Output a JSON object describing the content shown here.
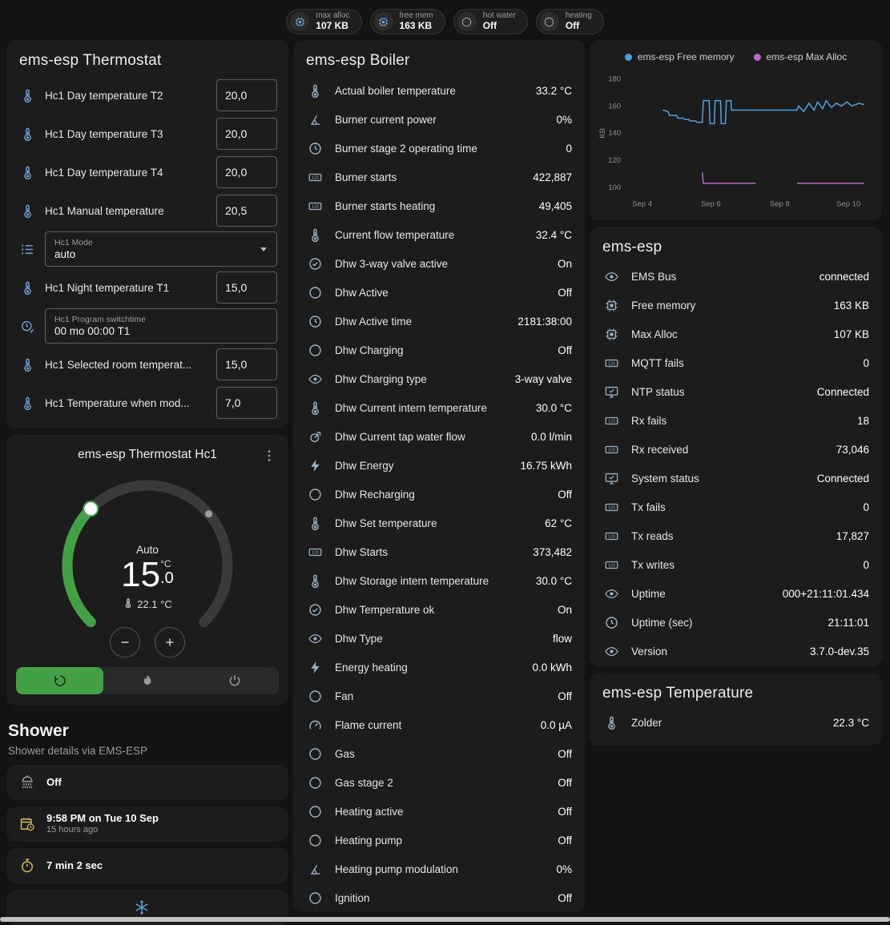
{
  "badges": [
    {
      "icon": "chip",
      "icon_color": "#6fa1d6",
      "label": "max alloc",
      "value": "107 KB"
    },
    {
      "icon": "chip",
      "icon_color": "#6fa1d6",
      "label": "free mem",
      "value": "163 KB"
    },
    {
      "icon": "circle",
      "icon_color": "#9b9b9b",
      "label": "hot water",
      "value": "Off"
    },
    {
      "icon": "circle",
      "icon_color": "#9b9b9b",
      "label": "heating",
      "value": "Off"
    }
  ],
  "thermostat_card": {
    "title": "ems-esp Thermostat",
    "rows": [
      {
        "icon": "thermometer",
        "label": "Hc1 Day temperature T2",
        "value": "20,0",
        "type": "number"
      },
      {
        "icon": "thermometer",
        "label": "Hc1 Day temperature T3",
        "value": "20,0",
        "type": "number"
      },
      {
        "icon": "thermometer",
        "label": "Hc1 Day temperature T4",
        "value": "20,0",
        "type": "number"
      },
      {
        "icon": "thermometer",
        "label": "Hc1 Manual temperature",
        "value": "20,5",
        "type": "number"
      },
      {
        "icon": "list",
        "label": "Hc1 Mode",
        "value": "auto",
        "type": "select"
      },
      {
        "icon": "thermometer",
        "label": "Hc1 Night temperature T1",
        "value": "15,0",
        "type": "number"
      },
      {
        "icon": "clock-edit",
        "label": "Hc1 Program switchtime",
        "value": "00 mo 00:00 T1",
        "type": "text"
      },
      {
        "icon": "thermometer",
        "label": "Hc1 Selected room temperat...",
        "value": "15,0",
        "type": "number"
      },
      {
        "icon": "thermometer",
        "label": "Hc1 Temperature when mod...",
        "value": "7,0",
        "type": "number"
      }
    ]
  },
  "dial_card": {
    "title": "ems-esp Thermostat Hc1",
    "mode": "Auto",
    "temp_int": "15",
    "temp_dec": ".0",
    "temp_unit": "°C",
    "current": "22.1 °C"
  },
  "shower": {
    "title": "Shower",
    "subtitle": "Shower details via EMS-ESP",
    "cards": [
      {
        "icon": "shower-head",
        "color": "#9da0a2",
        "title": "Off"
      },
      {
        "icon": "calendar-clock",
        "color": "#d9b94d",
        "title": "9:58 PM on Tue 10 Sep",
        "subtitle": "15 hours ago"
      },
      {
        "icon": "timer",
        "color": "#d9b94d",
        "title": "7 min 2 sec"
      },
      {
        "icon": "snowflake",
        "color": "#58a6e8",
        "variant": "center"
      }
    ]
  },
  "boiler_card": {
    "title": "ems-esp Boiler",
    "rows": [
      {
        "icon": "thermometer",
        "label": "Actual boiler temperature",
        "value": "33.2 °C"
      },
      {
        "icon": "angle",
        "label": "Burner current power",
        "value": "0%"
      },
      {
        "icon": "clock",
        "label": "Burner stage 2 operating time",
        "value": "0"
      },
      {
        "icon": "counter",
        "label": "Burner starts",
        "value": "422,887"
      },
      {
        "icon": "counter",
        "label": "Burner starts heating",
        "value": "49,405"
      },
      {
        "icon": "thermometer",
        "label": "Current flow temperature",
        "value": "32.4 °C"
      },
      {
        "icon": "check-circle",
        "label": "Dhw 3-way valve active",
        "value": "On"
      },
      {
        "icon": "circle",
        "label": "Dhw Active",
        "value": "Off"
      },
      {
        "icon": "clock",
        "label": "Dhw Active time",
        "value": "2181:38:00"
      },
      {
        "icon": "circle",
        "label": "Dhw Charging",
        "value": "Off"
      },
      {
        "icon": "eye",
        "label": "Dhw Charging type",
        "value": "3-way valve"
      },
      {
        "icon": "thermometer",
        "label": "Dhw Current intern temperature",
        "value": "30.0 °C"
      },
      {
        "icon": "pump",
        "label": "Dhw Current tap water flow",
        "value": "0.0 l/min"
      },
      {
        "icon": "lightning",
        "label": "Dhw Energy",
        "value": "16.75 kWh"
      },
      {
        "icon": "circle",
        "label": "Dhw Recharging",
        "value": "Off"
      },
      {
        "icon": "thermometer",
        "label": "Dhw Set temperature",
        "value": "62 °C"
      },
      {
        "icon": "counter",
        "label": "Dhw Starts",
        "value": "373,482"
      },
      {
        "icon": "thermometer",
        "label": "Dhw Storage intern temperature",
        "value": "30.0 °C"
      },
      {
        "icon": "check-circle",
        "label": "Dhw Temperature ok",
        "value": "On"
      },
      {
        "icon": "eye",
        "label": "Dhw Type",
        "value": "flow"
      },
      {
        "icon": "lightning",
        "label": "Energy heating",
        "value": "0.0 kWh"
      },
      {
        "icon": "circle",
        "label": "Fan",
        "value": "Off"
      },
      {
        "icon": "current",
        "label": "Flame current",
        "value": "0.0 µA"
      },
      {
        "icon": "circle",
        "label": "Gas",
        "value": "Off"
      },
      {
        "icon": "circle",
        "label": "Gas stage 2",
        "value": "Off"
      },
      {
        "icon": "circle",
        "label": "Heating active",
        "value": "Off"
      },
      {
        "icon": "circle",
        "label": "Heating pump",
        "value": "Off"
      },
      {
        "icon": "angle",
        "label": "Heating pump modulation",
        "value": "0%"
      },
      {
        "icon": "circle",
        "label": "Ignition",
        "value": "Off"
      }
    ]
  },
  "emsesp_card": {
    "title": "ems-esp",
    "rows": [
      {
        "icon": "eye",
        "label": "EMS Bus",
        "value": "connected"
      },
      {
        "icon": "chip",
        "label": "Free memory",
        "value": "163 KB"
      },
      {
        "icon": "chip",
        "label": "Max Alloc",
        "value": "107 KB"
      },
      {
        "icon": "counter",
        "label": "MQTT fails",
        "value": "0"
      },
      {
        "icon": "monitor",
        "label": "NTP status",
        "value": "Connected"
      },
      {
        "icon": "counter",
        "label": "Rx fails",
        "value": "18"
      },
      {
        "icon": "counter",
        "label": "Rx received",
        "value": "73,046"
      },
      {
        "icon": "monitor",
        "label": "System status",
        "value": "Connected"
      },
      {
        "icon": "counter",
        "label": "Tx fails",
        "value": "0"
      },
      {
        "icon": "counter",
        "label": "Tx reads",
        "value": "17,827"
      },
      {
        "icon": "counter",
        "label": "Tx writes",
        "value": "0"
      },
      {
        "icon": "eye",
        "label": "Uptime",
        "value": "000+21:11:01.434"
      },
      {
        "icon": "clock",
        "label": "Uptime (sec)",
        "value": "21:11:01"
      },
      {
        "icon": "eye",
        "label": "Version",
        "value": "3.7.0-dev.35"
      }
    ]
  },
  "temp_card": {
    "title": "ems-esp Temperature",
    "rows": [
      {
        "icon": "thermometer",
        "label": "Zolder",
        "value": "22.3 °C"
      }
    ]
  },
  "chart_data": {
    "type": "line",
    "title": "",
    "ylabel": "KB",
    "xlim": [
      3.5,
      10.6
    ],
    "ylim": [
      95,
      185
    ],
    "yticks": [
      100,
      120,
      140,
      160,
      180
    ],
    "xticks": [
      {
        "v": 4,
        "label": "Sep 4"
      },
      {
        "v": 6,
        "label": "Sep 6"
      },
      {
        "v": 8,
        "label": "Sep 8"
      },
      {
        "v": 10,
        "label": "Sep 10"
      }
    ],
    "legend_position": "top",
    "grid": false,
    "series": [
      {
        "name": "ems-esp Free memory",
        "color": "#559fd9",
        "segments": [
          [
            [
              4.6,
              157
            ],
            [
              4.75,
              156
            ],
            [
              4.8,
              153
            ],
            [
              5.0,
              153
            ],
            [
              5.05,
              151
            ],
            [
              5.2,
              151
            ],
            [
              5.25,
              150
            ],
            [
              5.35,
              150
            ],
            [
              5.4,
              149
            ],
            [
              5.55,
              149
            ],
            [
              5.6,
              148
            ],
            [
              5.75,
              148
            ],
            [
              5.78,
              164
            ],
            [
              5.95,
              164
            ],
            [
              5.97,
              147
            ],
            [
              6.1,
              147
            ],
            [
              6.12,
              164
            ],
            [
              6.28,
              164
            ],
            [
              6.3,
              147
            ],
            [
              6.42,
              147
            ],
            [
              6.45,
              164
            ],
            [
              6.58,
              164
            ],
            [
              6.6,
              157
            ],
            [
              7.55,
              157
            ],
            [
              8.5,
              157
            ],
            [
              8.55,
              160
            ],
            [
              8.7,
              156
            ],
            [
              8.85,
              162
            ],
            [
              9.0,
              157
            ],
            [
              9.1,
              163
            ],
            [
              9.25,
              158
            ],
            [
              9.35,
              164
            ],
            [
              9.5,
              159
            ],
            [
              9.65,
              162
            ],
            [
              9.8,
              160
            ],
            [
              9.95,
              163
            ],
            [
              10.1,
              160
            ],
            [
              10.3,
              162
            ],
            [
              10.45,
              161
            ]
          ]
        ]
      },
      {
        "name": "ems-esp Max Alloc",
        "color": "#b46bc8",
        "segments": [
          [
            [
              5.75,
              111
            ],
            [
              5.78,
              103
            ],
            [
              7.3,
              103
            ]
          ],
          [
            [
              8.5,
              103
            ],
            [
              10.45,
              103
            ]
          ]
        ]
      }
    ]
  },
  "colors": {
    "accent_green": "#43a047",
    "icon_blue": "#6fa1d6",
    "icon_muted": "#9db2c4",
    "amber": "#d9b94d",
    "snow_blue": "#58a6e8"
  }
}
